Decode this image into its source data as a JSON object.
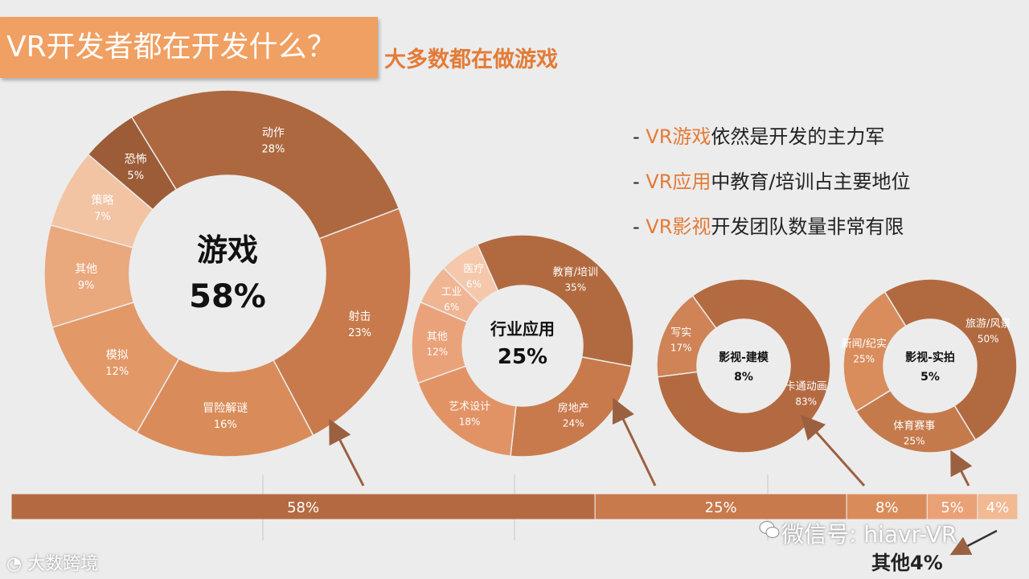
{
  "title": "VR开发者都在开发什么？",
  "subtitle": "大多数都在做游戏",
  "bullets": [
    {
      "prefix": "- ",
      "highlight": "VR游戏",
      "rest": "依然是开发的主力军"
    },
    {
      "prefix": "- ",
      "highlight": "VR应用",
      "rest": "中教育/培训占主要地位"
    },
    {
      "prefix": "- ",
      "highlight": "VR影视",
      "rest": "开发团队数量非常有限"
    }
  ],
  "colors": {
    "accent": "#e37b36",
    "title_bg": "#f0a062",
    "bar_main": "#b46a40"
  },
  "chart_data": [
    {
      "type": "pie",
      "center_label": "游戏",
      "center_value": "58%",
      "slices": [
        {
          "label": "动作",
          "value": 28,
          "display": "28%",
          "color": "#ad6840"
        },
        {
          "label": "射击",
          "value": 23,
          "display": "23%",
          "color": "#c87a4c"
        },
        {
          "label": "冒险解谜",
          "value": 16,
          "display": "16%",
          "color": "#d98c5a"
        },
        {
          "label": "模拟",
          "value": 12,
          "display": "12%",
          "color": "#e29867"
        },
        {
          "label": "其他",
          "value": 9,
          "display": "9%",
          "color": "#eaa87d"
        },
        {
          "label": "策略",
          "value": 7,
          "display": "7%",
          "color": "#f2c4a4"
        },
        {
          "label": "恐怖",
          "value": 5,
          "display": "5%",
          "color": "#9b5c37"
        }
      ]
    },
    {
      "type": "pie",
      "center_label": "行业应用",
      "center_value": "25%",
      "slices": [
        {
          "label": "教育/培训",
          "value": 35,
          "display": "35%",
          "color": "#b16a40"
        },
        {
          "label": "房地产",
          "value": 24,
          "display": "24%",
          "color": "#c87a4c"
        },
        {
          "label": "艺术设计",
          "value": 18,
          "display": "18%",
          "color": "#e29365"
        },
        {
          "label": "其他",
          "value": 12,
          "display": "12%",
          "color": "#eaa27a"
        },
        {
          "label": "工业",
          "value": 6,
          "display": "6%",
          "color": "#f0b592"
        },
        {
          "label": "医疗",
          "value": 6,
          "display": "6%",
          "color": "#f5c8ab"
        }
      ]
    },
    {
      "type": "pie",
      "center_label": "影视-建模",
      "center_value": "8%",
      "slices": [
        {
          "label": "卡通动画",
          "value": 83,
          "display": "83%",
          "color": "#b46a40"
        },
        {
          "label": "写实",
          "value": 17,
          "display": "17%",
          "color": "#cf8356"
        }
      ]
    },
    {
      "type": "pie",
      "center_label": "影视-实拍",
      "center_value": "5%",
      "slices": [
        {
          "label": "旅游/风景",
          "value": 50,
          "display": "50%",
          "color": "#b16a40"
        },
        {
          "label": "体育赛事",
          "value": 25,
          "display": "25%",
          "color": "#c57a4c"
        },
        {
          "label": "新闻/纪实",
          "value": 25,
          "display": "25%",
          "color": "#d98d5c"
        }
      ]
    },
    {
      "type": "bar",
      "orientation": "horizontal-stacked",
      "segments": [
        {
          "value": 58,
          "display": "58%",
          "color": "#b46a40"
        },
        {
          "value": 25,
          "display": "25%",
          "color": "#c87a4c"
        },
        {
          "value": 8,
          "display": "8%",
          "color": "#d98c5a"
        },
        {
          "value": 5,
          "display": "5%",
          "color": "#eaa176"
        },
        {
          "value": 4,
          "display": "4%",
          "color": "#f2b993"
        }
      ]
    }
  ],
  "other_label": "其他4%",
  "watermark": "微信号: hiavr-VR",
  "logo_text": "大数跨境",
  "icons": {
    "wechat": "wechat-icon",
    "logo": "dashu-logo-icon"
  }
}
